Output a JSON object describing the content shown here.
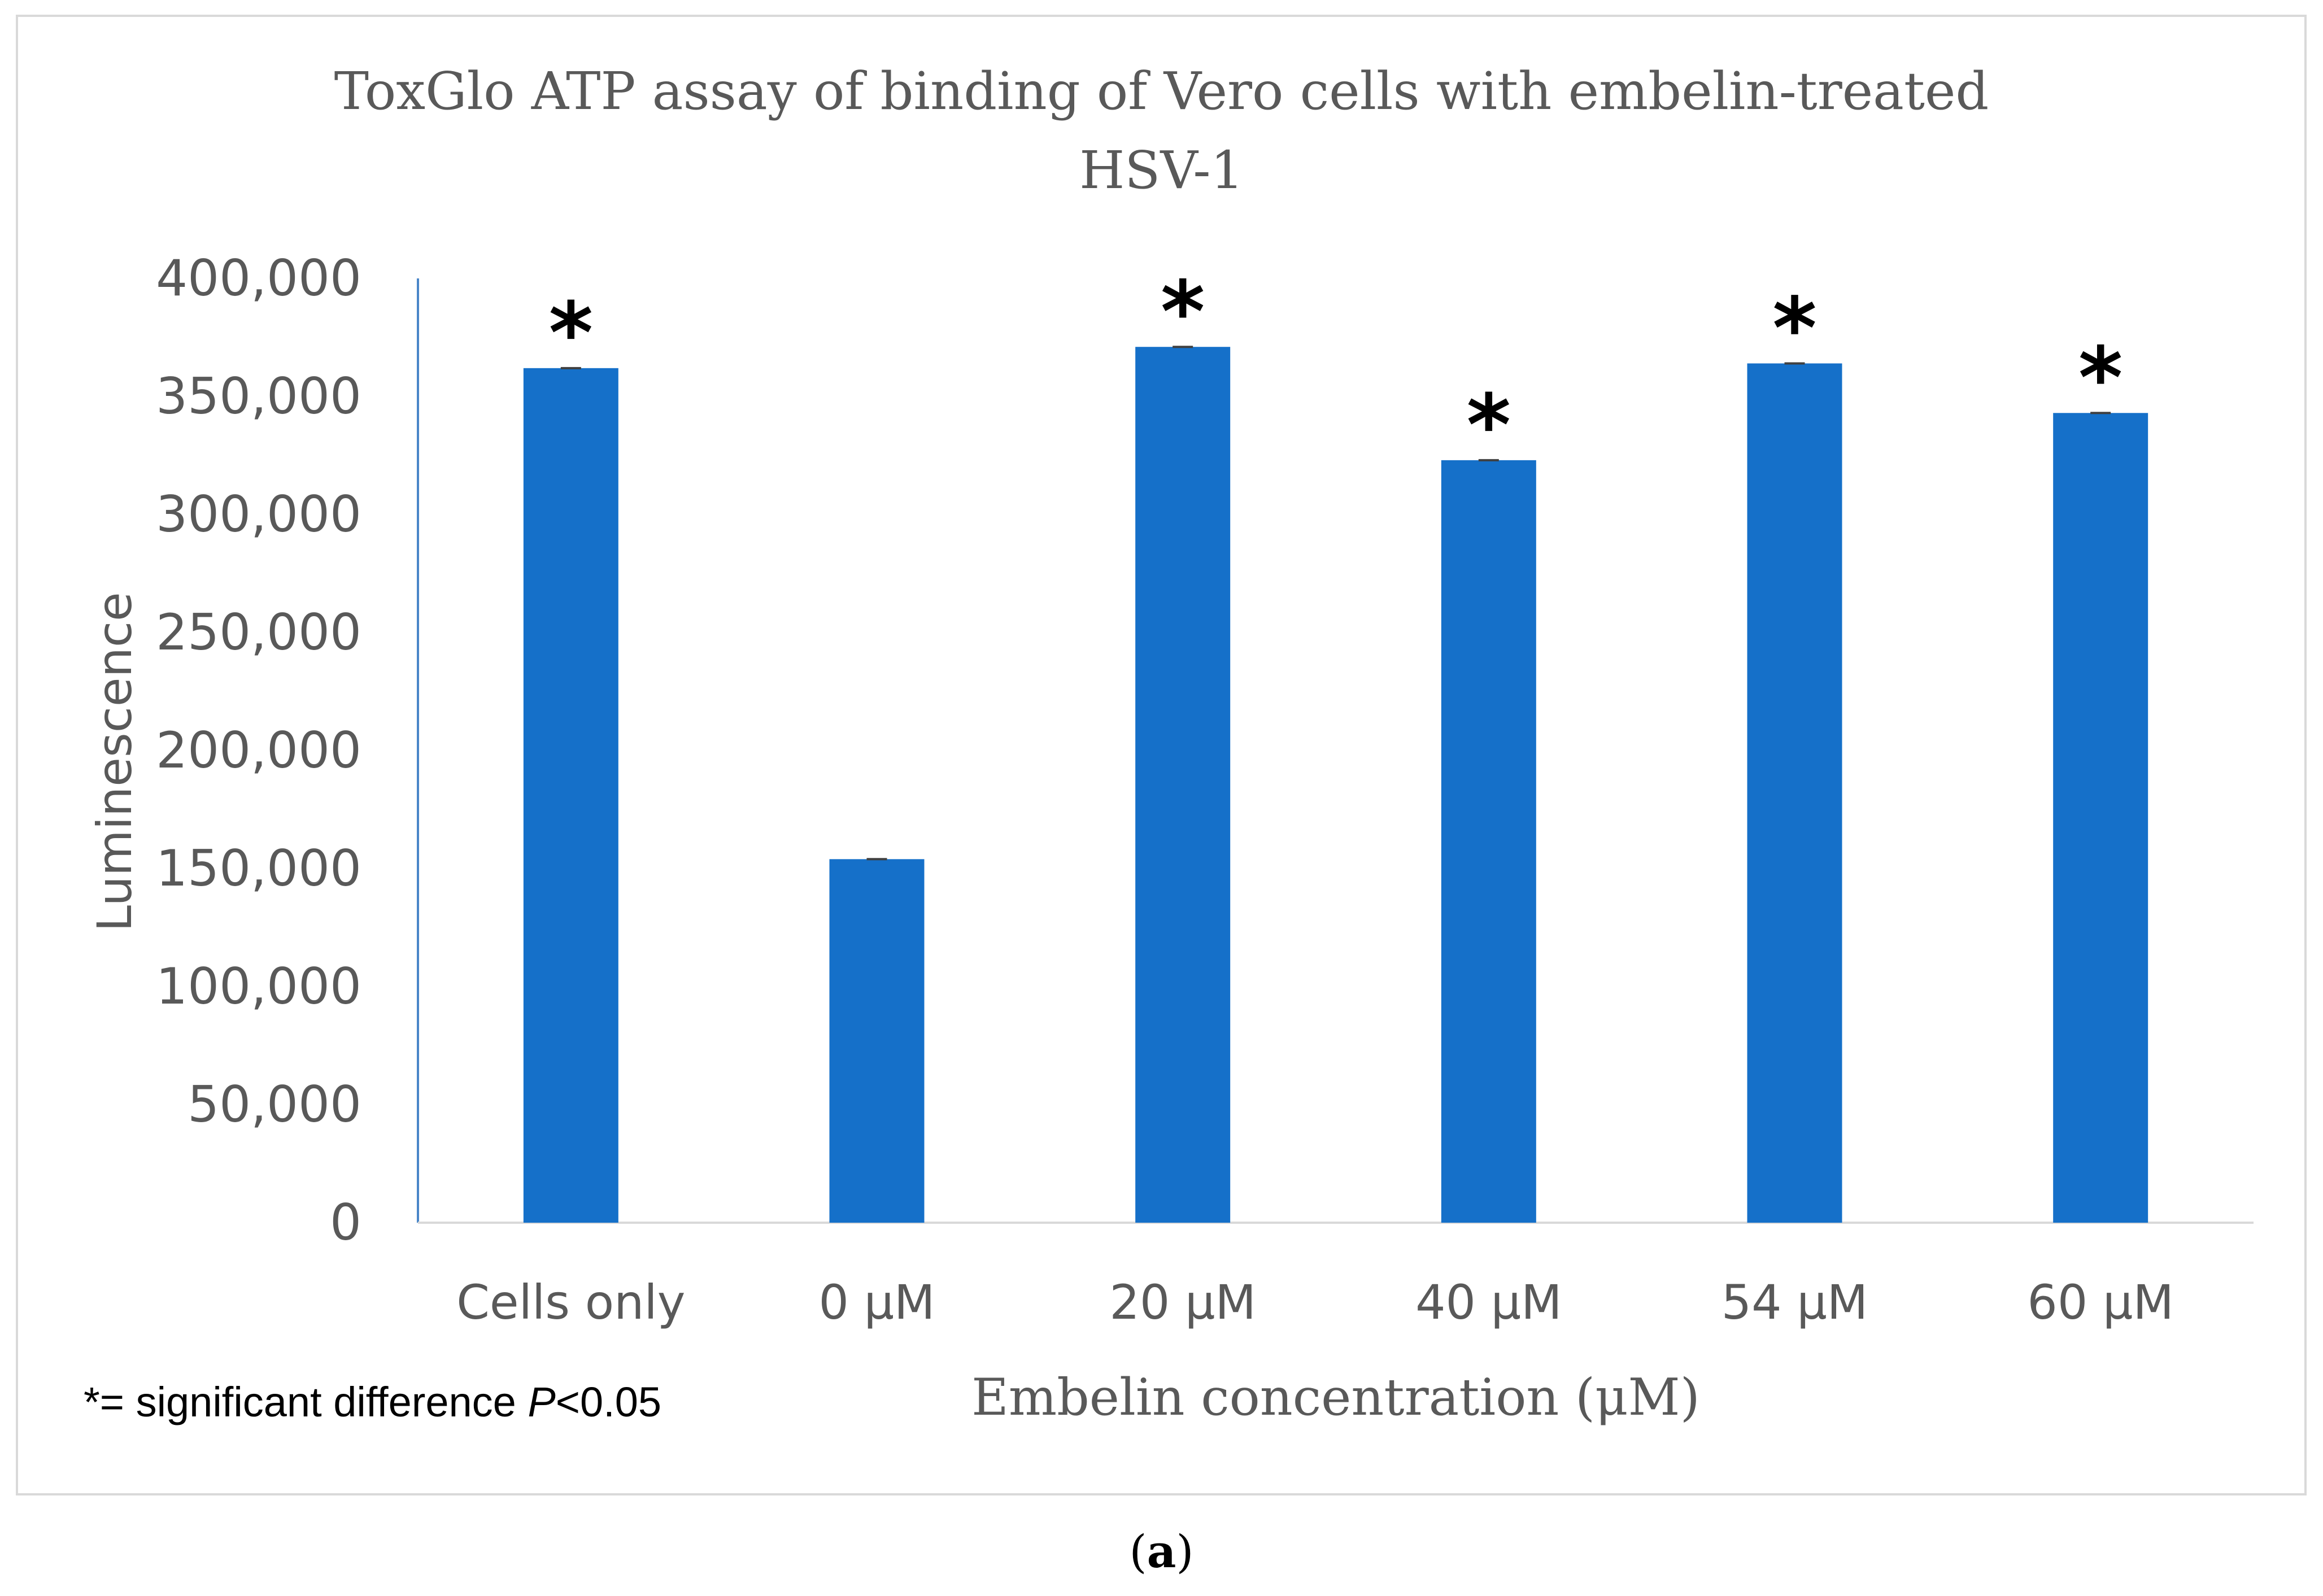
{
  "chart_data": {
    "type": "bar",
    "title": "ToxGlo ATP assay of binding of Vero cells with embelin-treated HSV-1",
    "title_lines": [
      "ToxGlo ATP assay of binding of Vero cells with embelin-treated",
      "HSV-1"
    ],
    "categories": [
      "Cells only",
      "0 μM",
      "20 μM",
      "40 μM",
      "54 μM",
      "60 μM"
    ],
    "values": [
      362000,
      154000,
      371000,
      323000,
      364000,
      343000
    ],
    "significant": [
      true,
      false,
      true,
      true,
      true,
      true
    ],
    "significance_marker": "*",
    "xlabel": "Embelin concentration (μM)",
    "ylabel": "Luminescence",
    "ylim": [
      0,
      400000
    ],
    "yticks": [
      0,
      50000,
      100000,
      150000,
      200000,
      250000,
      300000,
      350000,
      400000
    ],
    "ytick_labels": [
      "0",
      "50,000",
      "100,000",
      "150,000",
      "200,000",
      "250,000",
      "300,000",
      "350,000",
      "400,000"
    ],
    "grid": false,
    "bar_color": "#1570c9",
    "footnote": {
      "prefix": "*= significant difference ",
      "italic": "P",
      "suffix": "<0.05"
    },
    "panel_label": {
      "open": "(",
      "letter": "a",
      "close": ")"
    }
  }
}
